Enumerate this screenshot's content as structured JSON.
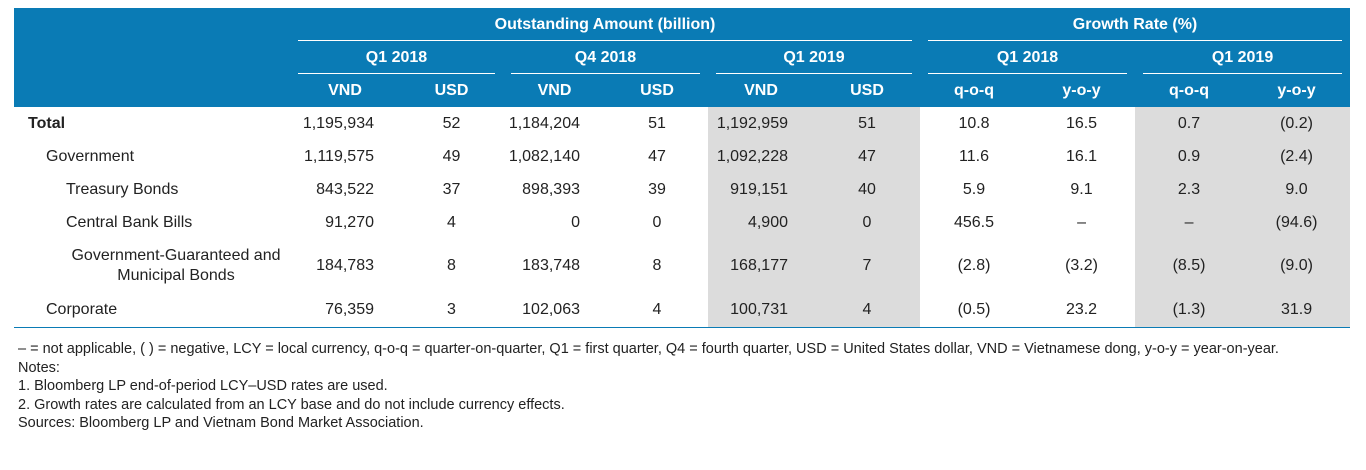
{
  "header": {
    "outstanding": "Outstanding Amount (billion)",
    "growth": "Growth Rate (%)",
    "periods": [
      "Q1 2018",
      "Q4 2018",
      "Q1 2019"
    ],
    "growth_periods": [
      "Q1 2018",
      "Q1 2019"
    ],
    "vnd": "VND",
    "usd": "USD",
    "qoq": "q-o-q",
    "yoy": "y-o-y"
  },
  "rows": [
    {
      "label": "Total",
      "v": [
        "1,195,934",
        "52",
        "1,184,204",
        "51",
        "1,192,959",
        "51",
        "10.8",
        "16.5",
        "0.7",
        "(0.2)"
      ]
    },
    {
      "label": "Government",
      "v": [
        "1,119,575",
        "49",
        "1,082,140",
        "47",
        "1,092,228",
        "47",
        "11.6",
        "16.1",
        "0.9",
        "(2.4)"
      ]
    },
    {
      "label": "Treasury Bonds",
      "v": [
        "843,522",
        "37",
        "898,393",
        "39",
        "919,151",
        "40",
        "5.9",
        "9.1",
        "2.3",
        "9.0"
      ]
    },
    {
      "label": "Central Bank Bills",
      "v": [
        "91,270",
        "4",
        "0",
        "0",
        "4,900",
        "0",
        "456.5",
        "–",
        "–",
        "(94.6)"
      ]
    },
    {
      "label": "Government-Guaranteed and Municipal Bonds",
      "v": [
        "184,783",
        "8",
        "183,748",
        "8",
        "168,177",
        "7",
        "(2.8)",
        "(3.2)",
        "(8.5)",
        "(9.0)"
      ]
    },
    {
      "label": "Corporate",
      "v": [
        "76,359",
        "3",
        "102,063",
        "4",
        "100,731",
        "4",
        "(0.5)",
        "23.2",
        "(1.3)",
        "31.9"
      ]
    }
  ],
  "notes": {
    "abbrev": "– = not applicable, ( ) = negative, LCY = local currency, q-o-q = quarter-on-quarter, Q1 = first quarter, Q4 = fourth quarter, USD = United States dollar, VND = Vietnamese dong, y-o-y = year-on-year.",
    "title": "Notes:",
    "n1": "1.  Bloomberg LP end-of-period LCY–USD rates are used.",
    "n2": "2. Growth rates are calculated from an LCY base and do not include currency effects.",
    "sources": "Sources: Bloomberg LP and Vietnam Bond Market Association."
  },
  "colors": {
    "header": "#0a7bb5",
    "highlight": "#dcdcdc"
  }
}
